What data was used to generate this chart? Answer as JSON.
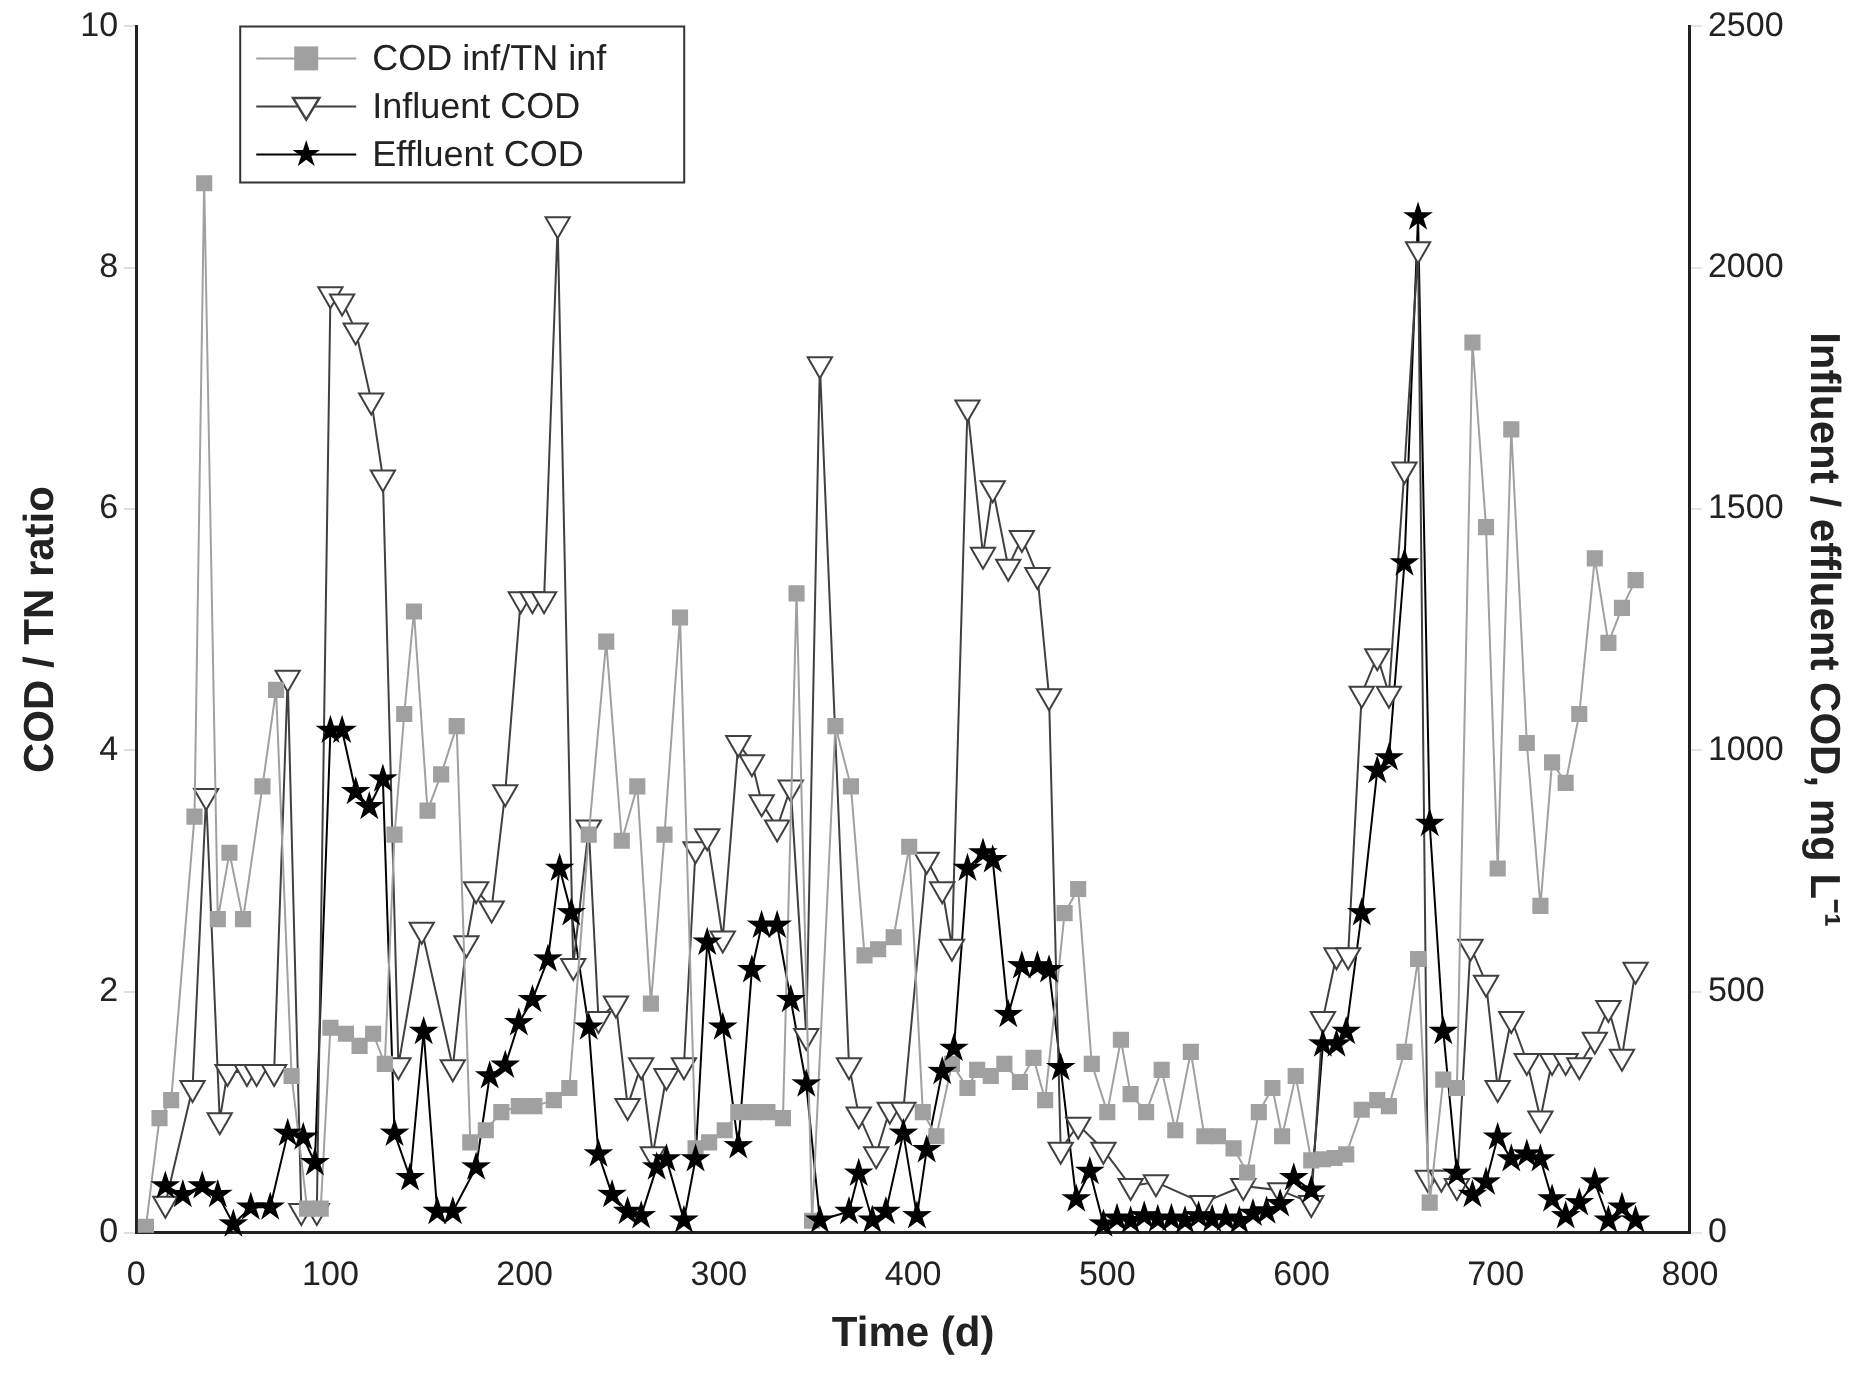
{
  "chart_data": {
    "type": "line",
    "xlabel": "Time (d)",
    "ylabel": "COD / TN ratio",
    "y2label": "Influent / effluent COD, mg L⁻¹",
    "xlim": [
      0,
      800
    ],
    "xticks": [
      0,
      100,
      200,
      300,
      400,
      500,
      600,
      700,
      800
    ],
    "ylim": [
      0,
      10
    ],
    "yticks": [
      0,
      2,
      4,
      6,
      8,
      10
    ],
    "y2lim": [
      0,
      2500
    ],
    "y2ticks": [
      0,
      500,
      1000,
      1500,
      2000,
      2500
    ],
    "grid": false,
    "legend": "top left",
    "line_style": "solid",
    "series": [
      {
        "name": "COD inf/TN inf",
        "color": "#a0a0a0",
        "marker": "square",
        "axis": "y",
        "x": [
          5,
          12,
          18,
          30,
          35,
          42,
          48,
          55,
          65,
          72,
          80,
          88,
          95,
          100,
          108,
          115,
          122,
          128,
          133,
          138,
          143,
          150,
          157,
          165,
          172,
          180,
          188,
          197,
          205,
          215,
          223,
          233,
          242,
          250,
          258,
          265,
          272,
          280,
          288,
          295,
          303,
          310,
          318,
          325,
          333,
          340,
          348,
          360,
          368,
          375,
          382,
          390,
          398,
          405,
          412,
          420,
          428,
          433,
          440,
          447,
          455,
          462,
          468,
          478,
          485,
          492,
          500,
          507,
          512,
          520,
          528,
          535,
          543,
          550,
          557,
          565,
          572,
          578,
          585,
          590,
          597,
          605,
          611,
          617,
          623,
          631,
          639,
          645,
          653,
          660,
          666,
          673,
          680,
          688,
          695,
          701,
          708,
          716,
          723,
          729,
          736,
          743,
          751,
          758,
          765,
          772
        ],
        "values": [
          0.05,
          0.95,
          1.1,
          3.45,
          8.7,
          2.6,
          3.15,
          2.6,
          3.7,
          4.5,
          1.3,
          0.2,
          0.2,
          1.7,
          1.65,
          1.55,
          1.65,
          1.4,
          3.3,
          4.3,
          5.15,
          3.5,
          3.8,
          4.2,
          0.75,
          0.85,
          1.0,
          1.05,
          1.05,
          1.1,
          1.2,
          3.3,
          4.9,
          3.25,
          3.7,
          1.9,
          3.3,
          5.1,
          0.7,
          0.75,
          0.85,
          1.0,
          1.0,
          1.0,
          0.95,
          5.3,
          0.1,
          4.2,
          3.7,
          2.3,
          2.35,
          2.45,
          3.2,
          1.0,
          0.8,
          1.4,
          1.2,
          1.35,
          1.3,
          1.4,
          1.25,
          1.45,
          1.1,
          2.65,
          2.85,
          1.4,
          1.0,
          1.6,
          1.15,
          1.0,
          1.35,
          0.85,
          1.5,
          0.8,
          0.8,
          0.7,
          0.5,
          1.0,
          1.2,
          0.8,
          1.3,
          0.6,
          0.61,
          0.62,
          0.65,
          1.02,
          1.1,
          1.05,
          1.5,
          2.27,
          0.25,
          1.27,
          1.2,
          7.38,
          5.85,
          3.02,
          6.66,
          4.06,
          2.71,
          3.9,
          3.73,
          4.3,
          5.59,
          4.89,
          5.18,
          5.41
        ]
      },
      {
        "name": "Influent COD",
        "color": "#404040",
        "marker": "triangle",
        "axis": "y2",
        "x": [
          15,
          29,
          36,
          43,
          47,
          57,
          62,
          71,
          78,
          85,
          93,
          100,
          106,
          113,
          121,
          127,
          135,
          147,
          163,
          170,
          175,
          183,
          190,
          198,
          204,
          210,
          217,
          225,
          233,
          238,
          247,
          253,
          260,
          266,
          273,
          282,
          288,
          294,
          302,
          310,
          317,
          322,
          330,
          337,
          345,
          352,
          367,
          372,
          381,
          388,
          395,
          407,
          415,
          420,
          428,
          436,
          441,
          449,
          456,
          464,
          470,
          476,
          485,
          498,
          512,
          525,
          549,
          570,
          589,
          605,
          611,
          618,
          624,
          631,
          639,
          645,
          653,
          660,
          665,
          672,
          680,
          687,
          695,
          701,
          708,
          716,
          723,
          729,
          736,
          743,
          751,
          758,
          765,
          772
        ],
        "values": [
          60,
          300,
          905,
          233,
          333,
          333,
          333,
          333,
          1150,
          45,
          45,
          1945,
          1930,
          1870,
          1725,
          1565,
          347,
          628,
          343,
          600,
          712,
          672,
          913,
          1313,
          1313,
          1313,
          2090,
          553,
          840,
          443,
          475,
          263,
          347,
          163,
          325,
          347,
          795,
          822,
          610,
          1015,
          975,
          892,
          840,
          923,
          408,
          1800,
          347,
          245,
          163,
          255,
          255,
          773,
          712,
          593,
          1710,
          1405,
          1543,
          1380,
          1440,
          1363,
          1112,
          172,
          224,
          172,
          97,
          105,
          62,
          97,
          88,
          62,
          443,
          575,
          575,
          1117,
          1195,
          1117,
          1582,
          2038,
          114,
          114,
          97,
          593,
          518,
          300,
          443,
          356,
          237,
          356,
          356,
          347,
          400,
          466,
          365,
          545
        ]
      },
      {
        "name": "Effluent COD",
        "color": "#000000",
        "marker": "star",
        "axis": "y2",
        "x": [
          15,
          24,
          34,
          42,
          50,
          59,
          69,
          78,
          86,
          92,
          100,
          106,
          113,
          120,
          127,
          133,
          141,
          148,
          155,
          163,
          175,
          182,
          190,
          197,
          204,
          212,
          218,
          224,
          233,
          238,
          245,
          253,
          260,
          268,
          273,
          282,
          288,
          294,
          302,
          310,
          317,
          322,
          330,
          337,
          345,
          352,
          367,
          372,
          379,
          386,
          395,
          402,
          407,
          415,
          421,
          428,
          436,
          441,
          449,
          456,
          464,
          470,
          476,
          484,
          491,
          498,
          505,
          512,
          519,
          526,
          533,
          540,
          547,
          554,
          561,
          568,
          575,
          582,
          589,
          596,
          605,
          611,
          618,
          623,
          631,
          639,
          645,
          653,
          660,
          666,
          673,
          680,
          688,
          695,
          701,
          708,
          716,
          723,
          729,
          736,
          743,
          751,
          758,
          765,
          772
        ],
        "values": [
          97,
          79,
          97,
          79,
          18,
          53,
          53,
          206,
          198,
          145,
          1041,
          1041,
          914,
          883,
          940,
          206,
          114,
          417,
          44,
          44,
          136,
          325,
          347,
          435,
          483,
          567,
          755,
          663,
          426,
          163,
          79,
          44,
          35,
          136,
          153,
          26,
          153,
          602,
          426,
          180,
          545,
          637,
          637,
          483,
          308,
          26,
          44,
          123,
          26,
          44,
          206,
          35,
          172,
          334,
          382,
          755,
          787,
          773,
          452,
          553,
          553,
          545,
          342,
          70,
          127,
          18,
          30,
          25,
          35,
          28,
          30,
          25,
          35,
          28,
          30,
          25,
          40,
          45,
          60,
          114,
          88,
          391,
          391,
          417,
          663,
          958,
          984,
          1388,
          2105,
          848,
          417,
          123,
          79,
          105,
          198,
          153,
          163,
          153,
          70,
          35,
          62,
          105,
          26,
          53,
          26
        ]
      }
    ]
  }
}
